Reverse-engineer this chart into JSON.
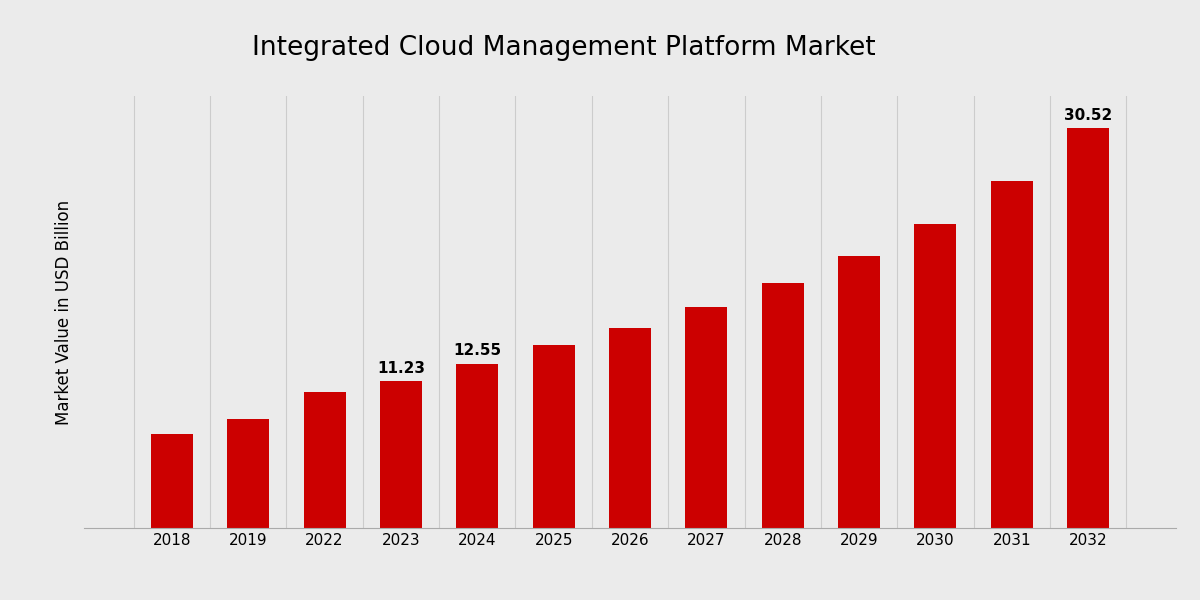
{
  "title": "Integrated Cloud Management Platform Market",
  "ylabel": "Market Value in USD Billion",
  "categories": [
    "2018",
    "2019",
    "2022",
    "2023",
    "2024",
    "2025",
    "2026",
    "2027",
    "2028",
    "2029",
    "2030",
    "2031",
    "2032"
  ],
  "values": [
    7.2,
    8.3,
    10.4,
    11.23,
    12.55,
    14.0,
    15.3,
    16.9,
    18.7,
    20.8,
    23.2,
    26.5,
    30.52
  ],
  "bar_color": "#CC0000",
  "labeled_bars": {
    "2023": "11.23",
    "2024": "12.55",
    "2032": "30.52"
  },
  "background_color": "#ebebeb",
  "plot_bg_color": "#ebebeb",
  "ylim": [
    0,
    33
  ],
  "title_fontsize": 19,
  "label_fontsize": 11,
  "tick_fontsize": 11,
  "ylabel_fontsize": 12,
  "bar_width": 0.55,
  "grid_color": "#cccccc",
  "bottom_bar_color": "#CC0000",
  "bottom_bar_height": 0.025
}
